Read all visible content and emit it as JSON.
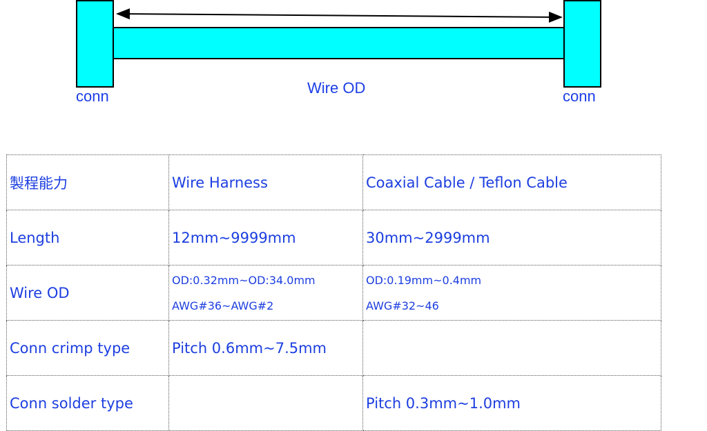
{
  "diagram": {
    "left_label": "conn",
    "right_label": "conn",
    "wire_label": "Wire OD",
    "fill_color": "#00ffff",
    "text_color": "#1c3ee6"
  },
  "table": {
    "header": [
      "製程能力",
      "Wire Harness",
      "Coaxial Cable / Teflon Cable"
    ],
    "rows": [
      {
        "label": "Length",
        "harness": [
          "12mm~9999mm"
        ],
        "coaxial": [
          "30mm~2999mm"
        ]
      },
      {
        "label": "Wire OD",
        "harness": [
          "OD:0.32mm~OD:34.0mm",
          "AWG#36~AWG#2"
        ],
        "coaxial": [
          "OD:0.19mm~0.4mm",
          "AWG#32~46"
        ]
      },
      {
        "label": "Conn crimp type",
        "harness": [
          "Pitch 0.6mm~7.5mm"
        ],
        "coaxial": []
      },
      {
        "label": "Conn solder type",
        "harness": [],
        "coaxial": [
          "Pitch 0.3mm~1.0mm"
        ]
      }
    ]
  }
}
